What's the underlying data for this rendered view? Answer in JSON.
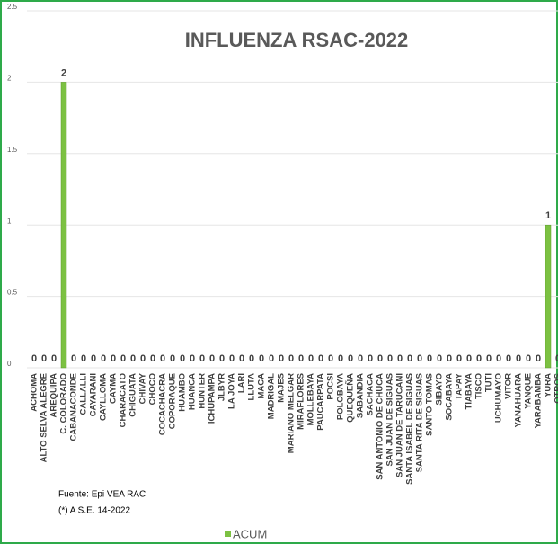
{
  "chart_data": {
    "type": "bar",
    "title": "INFLUENZA RSAC-2022",
    "categories": [
      "ACHOMA",
      "ALTO SELVA ALEGRE",
      "AREQUIPA",
      "C. COLORADO",
      "CABANACONDE",
      "CALLALLI",
      "CAYARANI",
      "CAYLLOMA",
      "CAYMA",
      "CHARACATO",
      "CHIGUATA",
      "CHIVAY",
      "CHOCO",
      "COCACHACRA",
      "COPORAQUE",
      "HUAMBO",
      "HUANCA",
      "HUNTER",
      "ICHUPAMPA",
      "JLBYR",
      "LA JOYA",
      "LARI",
      "LLUTA",
      "MACA",
      "MADRIGAL",
      "MAJES",
      "MARIANO MELGAR",
      "MIRAFLORES",
      "MOLLEBAYA",
      "PAUCARPATA",
      "POCSI",
      "POLOBAYA",
      "QUEQUEÑA",
      "SABANDIA",
      "SACHACA",
      "SAN ANTONIO DE CHUCA",
      "SAN JUAN DE SIGUAS",
      "SAN JUAN DE TARUCANI",
      "SANTA ISABEL DE SIGUAS",
      "SANTA RITA DE SIGUAS",
      "SANTO TOMAS",
      "SIBAYO",
      "SOCABAYA",
      "TAPAY",
      "TIABAYA",
      "TISCO",
      "TUTI",
      "UCHUMAYO",
      "VITOR",
      "YANAHUARA",
      "YANQUE",
      "YARABAMBA",
      "YURA",
      "OTROS"
    ],
    "series": [
      {
        "name": "ACUM",
        "color": "#7cc142",
        "values": [
          0,
          0,
          0,
          2,
          0,
          0,
          0,
          0,
          0,
          0,
          0,
          0,
          0,
          0,
          0,
          0,
          0,
          0,
          0,
          0,
          0,
          0,
          0,
          0,
          0,
          0,
          0,
          0,
          0,
          0,
          0,
          0,
          0,
          0,
          0,
          0,
          0,
          0,
          0,
          0,
          0,
          0,
          0,
          0,
          0,
          0,
          0,
          0,
          0,
          0,
          0,
          0,
          1,
          0
        ]
      }
    ],
    "ylim": [
      0,
      2.5
    ],
    "yticks": [
      0,
      0.5,
      1,
      1.5,
      2,
      2.5
    ],
    "grid": true,
    "notes": [
      "Fuente: Epi VEA RAC",
      "(*) A S.E. 14-2022"
    ]
  }
}
